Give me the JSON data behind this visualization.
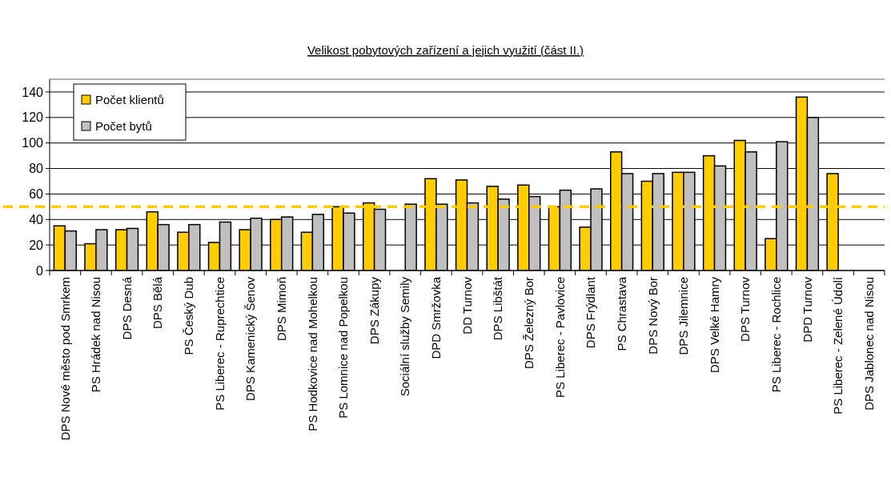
{
  "chart_data": {
    "type": "bar",
    "title": "Velikost pobytových zařízení a jejich využití (část II.)",
    "categories": [
      "DPS Nové město pod Smrkem",
      "PS Hrádek nad Nisou",
      "DPS Desná",
      "DPS Bělá",
      "PS Český Dub",
      "PS Liberec - Ruprechtice",
      "DPS Kamenický Šenov",
      "DPS Mimoň",
      "PS Hodkovice nad Mohelkou",
      "PS Lomnice nad Popelkou",
      "DPS Zákupy",
      "Sociální služby Semily",
      "DPD Smržovka",
      "DD Turnov",
      "DPS Libštát",
      "DPS Železný Bor",
      "PS Liberec - Pavlovice",
      "DPS Frýdlant",
      "PS Chrastava",
      "DPS Nový Bor",
      "DPS Jilemnice",
      "DPS Velké Hamry",
      "DPS Turnov",
      "PS Liberec - Rochlice",
      "DPD Turnov",
      "PS Liberec - Zelené Údolí",
      "DPS Jablonec nad Nisou"
    ],
    "series": [
      {
        "name": "Počet klientů",
        "color": "#ffcc00",
        "values": [
          35,
          21,
          32,
          46,
          30,
          22,
          32,
          40,
          30,
          50,
          53,
          null,
          72,
          71,
          66,
          67,
          50,
          34,
          93,
          70,
          77,
          90,
          102,
          25,
          136,
          76,
          null
        ]
      },
      {
        "name": "Počet bytů",
        "color": "#c0c0c0",
        "values": [
          31,
          32,
          33,
          36,
          36,
          38,
          41,
          42,
          44,
          45,
          48,
          52,
          52,
          53,
          56,
          58,
          63,
          64,
          76,
          76,
          77,
          82,
          93,
          101,
          120,
          null,
          null
        ]
      }
    ],
    "ylim": [
      0,
      150
    ],
    "yticks": [
      0,
      20,
      40,
      60,
      80,
      100,
      120,
      140
    ],
    "grid": "y",
    "legend": "top left",
    "ref_lines": [
      {
        "axis": "y",
        "value": 50,
        "color": "#ffcc00",
        "line_style": "dashed"
      }
    ]
  }
}
